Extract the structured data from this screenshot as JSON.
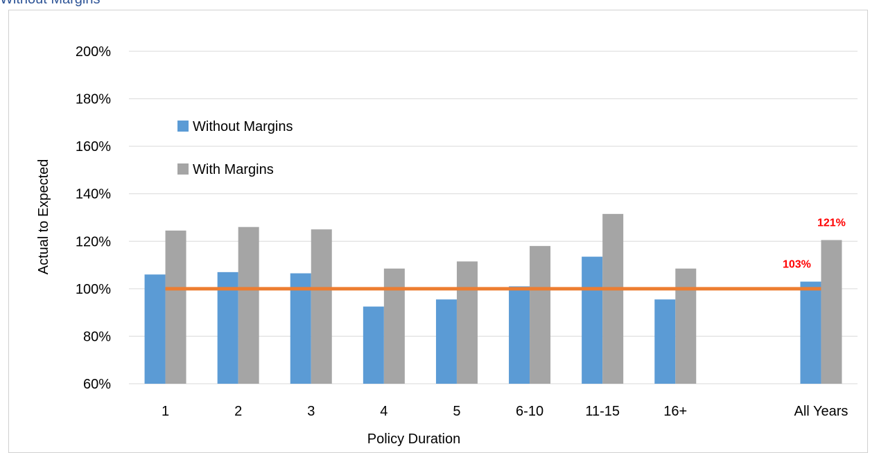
{
  "page": {
    "title": "Without Margins"
  },
  "chart_data": {
    "type": "bar",
    "title": "",
    "xlabel": "Policy Duration",
    "ylabel": "Actual to Expected",
    "ylim": [
      0.6,
      2.0
    ],
    "yticks": [
      0.6,
      0.8,
      1.0,
      1.2,
      1.4,
      1.6,
      1.8,
      2.0
    ],
    "ytick_labels": [
      "60%",
      "80%",
      "100%",
      "120%",
      "140%",
      "160%",
      "180%",
      "200%"
    ],
    "grid": true,
    "legend_position": "upper-left",
    "categories": [
      "1",
      "2",
      "3",
      "4",
      "5",
      "6-10",
      "11-15",
      "16+",
      "",
      "All Years"
    ],
    "series": [
      {
        "name": "Without Margins",
        "color": "#5b9bd5",
        "values": [
          1.06,
          1.07,
          1.065,
          0.925,
          0.955,
          1.01,
          1.135,
          0.955,
          null,
          1.03
        ]
      },
      {
        "name": "With Margins",
        "color": "#a5a5a5",
        "values": [
          1.245,
          1.26,
          1.25,
          1.085,
          1.115,
          1.18,
          1.315,
          1.085,
          null,
          1.205
        ]
      }
    ],
    "reference_line": {
      "value": 1.0,
      "color": "#ed7d31"
    },
    "annotations": [
      {
        "text": "103%",
        "category_index": 9,
        "series_index": 0,
        "color": "#ff0000"
      },
      {
        "text": "121%",
        "category_index": 9,
        "series_index": 1,
        "color": "#ff0000"
      }
    ]
  }
}
